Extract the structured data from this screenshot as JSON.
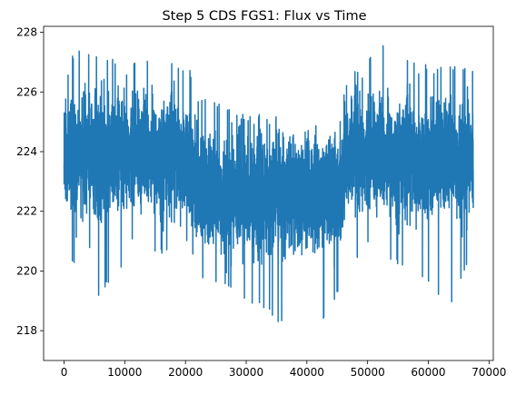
{
  "chart_data": {
    "type": "line",
    "title": "Step 5 CDS FGS1: Flux vs Time",
    "xlabel": "",
    "ylabel": "",
    "xlim": [
      -3370,
      70700
    ],
    "ylim": [
      217.0,
      228.2
    ],
    "x_ticks": [
      0,
      10000,
      20000,
      30000,
      40000,
      50000,
      60000,
      70000
    ],
    "y_ticks": [
      218,
      220,
      222,
      224,
      226,
      228
    ],
    "grid": false,
    "series": [
      {
        "color": "#1f77b4",
        "x_range": [
          0,
          67400
        ],
        "mean_level": [
          {
            "x": 0,
            "y": 223.9
          },
          {
            "x": 20500,
            "y": 223.9
          },
          {
            "x": 22500,
            "y": 222.6
          },
          {
            "x": 45000,
            "y": 222.6
          },
          {
            "x": 46500,
            "y": 223.8
          },
          {
            "x": 67400,
            "y": 223.8
          }
        ],
        "upper_envelope": [
          {
            "x": 0,
            "y": 226.8
          },
          {
            "x": 2000,
            "y": 227.4
          },
          {
            "x": 10000,
            "y": 227.1
          },
          {
            "x": 20500,
            "y": 226.9
          },
          {
            "x": 22000,
            "y": 225.9
          },
          {
            "x": 30000,
            "y": 225.2
          },
          {
            "x": 40000,
            "y": 225.4
          },
          {
            "x": 45000,
            "y": 225.5
          },
          {
            "x": 47000,
            "y": 226.5
          },
          {
            "x": 52000,
            "y": 227.6
          },
          {
            "x": 60000,
            "y": 226.9
          },
          {
            "x": 67400,
            "y": 226.8
          }
        ],
        "lower_envelope": [
          {
            "x": 0,
            "y": 220.7
          },
          {
            "x": 5000,
            "y": 219.0
          },
          {
            "x": 10000,
            "y": 220.2
          },
          {
            "x": 20500,
            "y": 220.8
          },
          {
            "x": 22000,
            "y": 219.8
          },
          {
            "x": 30000,
            "y": 219.0
          },
          {
            "x": 36000,
            "y": 218.2
          },
          {
            "x": 40000,
            "y": 217.4
          },
          {
            "x": 44000,
            "y": 218.6
          },
          {
            "x": 45500,
            "y": 219.6
          },
          {
            "x": 47000,
            "y": 220.3
          },
          {
            "x": 55000,
            "y": 220.2
          },
          {
            "x": 64000,
            "y": 218.8
          },
          {
            "x": 67400,
            "y": 220.6
          }
        ]
      }
    ]
  }
}
